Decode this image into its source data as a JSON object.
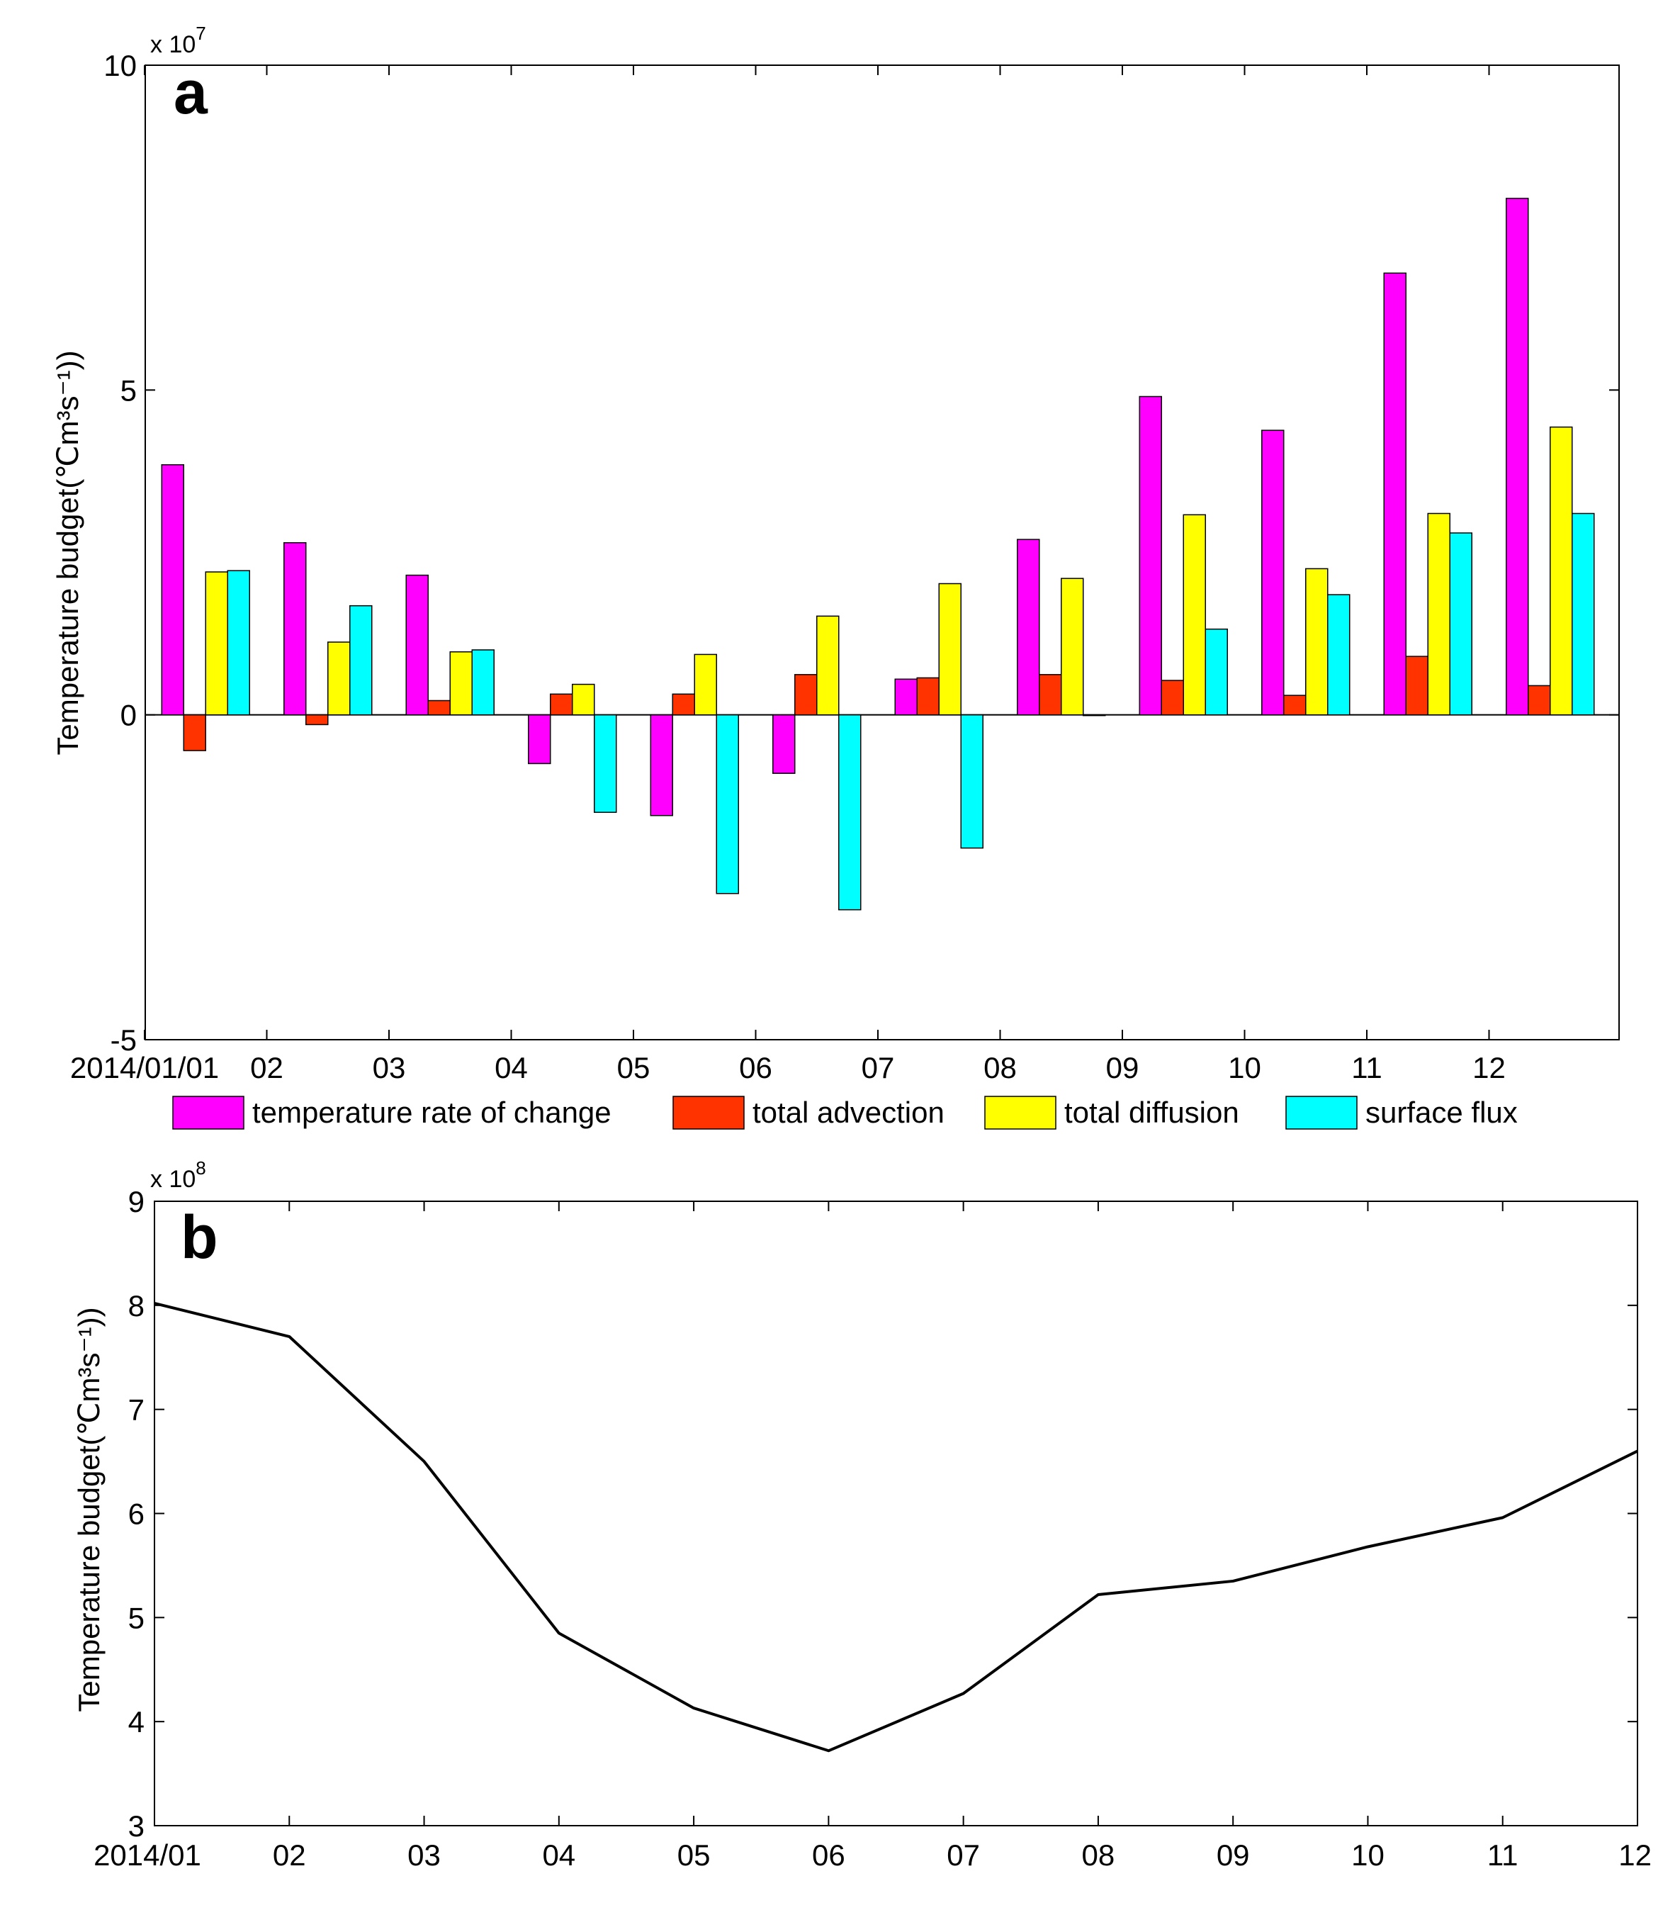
{
  "chart_data": [
    {
      "panel": "a",
      "type": "bar",
      "title": "",
      "panel_label": "a",
      "xlabel": "",
      "ylabel": "Temperature budget(℃m³s⁻¹))",
      "y_scale_text": "x 10",
      "y_scale_exponent": "7",
      "ylim": [
        -5,
        10
      ],
      "yticks": [
        -5,
        0,
        5,
        10
      ],
      "ytick_labels": [
        "-5",
        "0",
        "5",
        "10"
      ],
      "categories": [
        "2014/01/01",
        "02",
        "03",
        "04",
        "05",
        "06",
        "07",
        "08",
        "09",
        "10",
        "11",
        "12"
      ],
      "legend_position": "bottom",
      "series": [
        {
          "name": "temperature rate of change",
          "color": "#ff00ff",
          "values": [
            3.85,
            2.65,
            2.15,
            -0.75,
            -1.55,
            -0.9,
            0.55,
            2.7,
            4.9,
            4.38,
            6.8,
            7.95
          ]
        },
        {
          "name": "total advection",
          "color": "#ff3300",
          "values": [
            -0.55,
            -0.15,
            0.22,
            0.32,
            0.32,
            0.62,
            0.57,
            0.62,
            0.53,
            0.3,
            0.9,
            0.45
          ]
        },
        {
          "name": "total  diffusion",
          "color": "#ffff00",
          "values": [
            2.2,
            1.12,
            0.97,
            0.47,
            0.93,
            1.52,
            2.02,
            2.1,
            3.08,
            2.25,
            3.1,
            4.43
          ]
        },
        {
          "name": "surface flux",
          "color": "#00ffff",
          "values": [
            2.22,
            1.68,
            1.0,
            -1.5,
            -2.75,
            -3.0,
            -2.05,
            0.0,
            1.32,
            1.85,
            2.8,
            3.1
          ]
        }
      ]
    },
    {
      "panel": "b",
      "type": "line",
      "title": "",
      "panel_label": "b",
      "xlabel": "",
      "ylabel": "Temperature budget(℃m³s⁻¹))",
      "y_scale_text": "x 10",
      "y_scale_exponent": "8",
      "ylim": [
        3,
        9
      ],
      "yticks": [
        3,
        4,
        5,
        6,
        7,
        8,
        9
      ],
      "ytick_labels": [
        "3",
        "4",
        "5",
        "6",
        "7",
        "8",
        "9"
      ],
      "categories": [
        "2014/01",
        "02",
        "03",
        "04",
        "05",
        "06",
        "07",
        "08",
        "09",
        "10",
        "11",
        "12"
      ],
      "series": [
        {
          "name": "temperature budget",
          "color": "#000000",
          "values": [
            8.02,
            7.7,
            6.5,
            4.85,
            4.13,
            3.72,
            4.27,
            5.22,
            5.35,
            5.68,
            5.96,
            6.6
          ]
        }
      ]
    }
  ]
}
